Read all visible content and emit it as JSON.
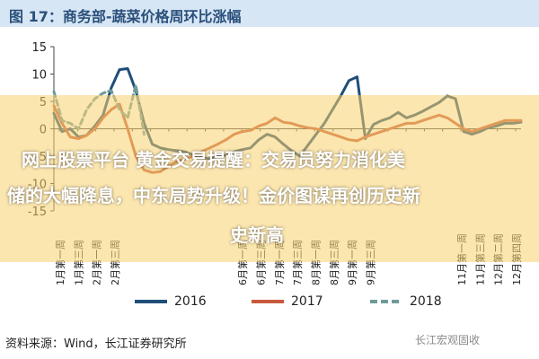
{
  "figure_title": "图 17：商务部-蔬菜价格周环比涨幅",
  "chart_data": {
    "type": "line",
    "ylim": [
      -15,
      15
    ],
    "yticks": [
      -15,
      -10,
      -5,
      0,
      5,
      10,
      15
    ],
    "x_labels": [
      "1月第一周",
      "1月第三周",
      "2月第一周",
      "2月第三周",
      "",
      "",
      "",
      "",
      "",
      "",
      "6月第一周",
      "6月第三周",
      "7月第一周",
      "7月第三周",
      "8月第一周",
      "8月第三周",
      "9月第一周",
      "9月第三周",
      "",
      "",
      "",
      "",
      "11月第一周",
      "11月第三周",
      "12月第二周",
      "12月第四周"
    ],
    "series": [
      {
        "name": "2016",
        "color": "#1f4e79",
        "dash": "",
        "values": [
          2.8,
          -0.5,
          0,
          -1.5,
          -1.2,
          0.5,
          2.5,
          7.5,
          10.8,
          11,
          7,
          1,
          -2.8,
          -3.5,
          -3.8,
          -4,
          -4.2,
          -4.8,
          -5.2,
          -5.5,
          -5,
          -4.8,
          -4.2,
          -3.8,
          -3.5,
          -2,
          -1,
          -1.5,
          -2.8,
          -4,
          -5,
          -3,
          -1,
          1,
          3.5,
          6,
          8.8,
          9.5,
          -1.8,
          0.8,
          1.5,
          2,
          3,
          2,
          2.5,
          3.2,
          4,
          4.8,
          6,
          5.5,
          -0.5,
          -1,
          -0.5,
          0.2,
          0.5,
          1,
          1,
          1.2
        ]
      },
      {
        "name": "2017",
        "color": "#c65a3c",
        "dash": "",
        "values": [
          4.2,
          1,
          -1.5,
          -1.8,
          -1.2,
          0,
          2,
          3.5,
          4.5,
          0,
          -5,
          -7.5,
          -8,
          -7.8,
          -6.8,
          -6,
          -5.5,
          -5,
          -4.2,
          -3.5,
          -2.8,
          -2,
          -1,
          -0.5,
          -0.3,
          0.5,
          1,
          2,
          1.2,
          1,
          0.5,
          0.2,
          0,
          -0.5,
          -1,
          -1.5,
          -2,
          -2.2,
          -1.5,
          -1,
          -0.5,
          0,
          0.5,
          1,
          1,
          1.5,
          2,
          2.5,
          2,
          1,
          0,
          -0.5,
          0,
          0.5,
          1,
          1.5,
          1.5,
          1.5
        ]
      },
      {
        "name": "2018",
        "color": "#6f9a9a",
        "dash": "6,4",
        "values": [
          6.8,
          1.5,
          1,
          0,
          3.5,
          5.5,
          6.5,
          7,
          3.5,
          2,
          8,
          -1
        ]
      }
    ]
  },
  "legend": [
    "2016",
    "2017",
    "2018"
  ],
  "source": "资料来源：Wind，长江证券研究所",
  "watermark": "长江宏观固收",
  "overlay": {
    "line1": "网上股票平台 黄金交易提醒：交易员努力消化美",
    "line2": "储的大幅降息，中东局势升级！金价图谋再创历史新",
    "line3": "史新高"
  }
}
